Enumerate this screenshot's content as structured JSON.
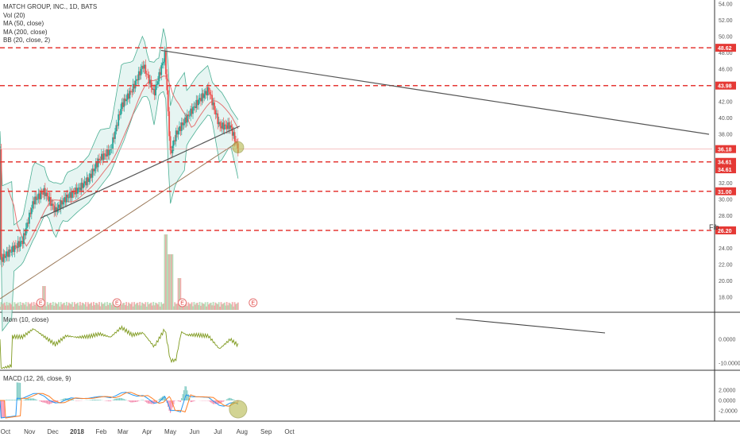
{
  "chart_data": {
    "type": "candlestick",
    "title": "MATCH GROUP, INC., 1D, BATS",
    "indicators_legend": [
      "Vol (20)",
      "MA (50, close)",
      "MA (200, close)",
      "BB (20, close, 2)"
    ],
    "price_axis": {
      "min": 16,
      "max": 54,
      "ticks": [
        18,
        20,
        22,
        24,
        26,
        28,
        30,
        32,
        34,
        36,
        38,
        40,
        42,
        44,
        46,
        48,
        50,
        52,
        54
      ]
    },
    "x_ticks": [
      "Oct",
      "Nov",
      "Dec",
      "2018",
      "Feb",
      "Mar",
      "Apr",
      "May",
      "Jun",
      "Jul",
      "Aug",
      "Sep",
      "Oct"
    ],
    "horizontal_levels": [
      48.62,
      43.98,
      34.61,
      31.0,
      26.2
    ],
    "last_price": 36.18,
    "level_labels": [
      "48.62",
      "43.98",
      "36.18",
      "34.61",
      "34.61",
      "31.00",
      "26.20"
    ],
    "close_series": [
      {
        "date": "2017-09-25",
        "close": 22.6
      },
      {
        "date": "2017-10-09",
        "close": 23.8
      },
      {
        "date": "2017-10-23",
        "close": 24.9
      },
      {
        "date": "2017-11-06",
        "close": 29.8
      },
      {
        "date": "2017-11-20",
        "close": 31.0
      },
      {
        "date": "2017-12-04",
        "close": 28.6
      },
      {
        "date": "2017-12-18",
        "close": 30.2
      },
      {
        "date": "2018-01-02",
        "close": 31.2
      },
      {
        "date": "2018-01-16",
        "close": 32.5
      },
      {
        "date": "2018-01-30",
        "close": 35.0
      },
      {
        "date": "2018-02-13",
        "close": 36.0
      },
      {
        "date": "2018-02-27",
        "close": 41.5
      },
      {
        "date": "2018-03-13",
        "close": 43.5
      },
      {
        "date": "2018-03-27",
        "close": 46.5
      },
      {
        "date": "2018-04-10",
        "close": 43.0
      },
      {
        "date": "2018-04-24",
        "close": 47.8
      },
      {
        "date": "2018-05-01",
        "close": 35.5
      },
      {
        "date": "2018-05-08",
        "close": 38.0
      },
      {
        "date": "2018-05-22",
        "close": 40.0
      },
      {
        "date": "2018-06-05",
        "close": 42.0
      },
      {
        "date": "2018-06-19",
        "close": 43.5
      },
      {
        "date": "2018-07-03",
        "close": 39.0
      },
      {
        "date": "2018-07-17",
        "close": 39.0
      },
      {
        "date": "2018-07-27",
        "close": 36.18
      }
    ],
    "momentum": {
      "label": "Mom (10, close)",
      "ticks": [
        "0.0000",
        "-10.0000"
      ]
    },
    "macd": {
      "label": "MACD (12, 26, close, 9)",
      "ticks": [
        "2.0000",
        "0.0000",
        "-2.0000"
      ]
    },
    "annotations": [
      "E",
      "E",
      "E",
      "E",
      "Fib"
    ],
    "colors": {
      "up": "#26a69a",
      "down": "#ef5350",
      "level": "#e53935",
      "ma50": "#e57373",
      "ma200": "#9c7b5b",
      "bb": "#4caf94",
      "mom": "#7f9a1f",
      "macd": "#2196f3",
      "signal": "#ff7f27"
    }
  }
}
